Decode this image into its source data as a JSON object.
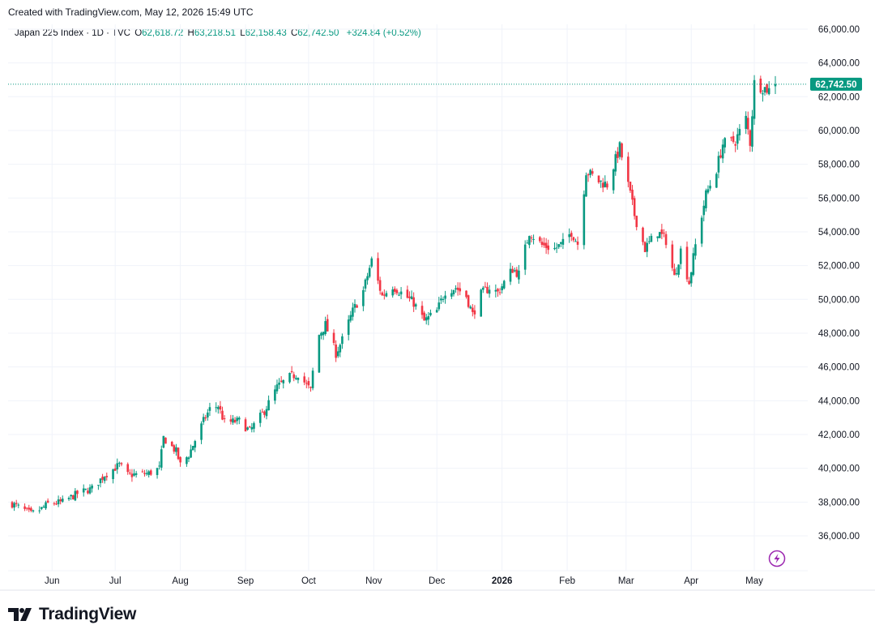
{
  "header": {
    "created_text": "Created with TradingView.com, May 12, 2026 15:49 UTC"
  },
  "legend": {
    "symbol": "Japan 225 Index · 1D · TVC",
    "open_label": "O",
    "open": "62,618.72",
    "high_label": "H",
    "high": "63,218.51",
    "low_label": "L",
    "low": "62,158.43",
    "close_label": "C",
    "close": "62,742.50",
    "change": "+324.84 (+0.52%)"
  },
  "price_tag": "62,742.50",
  "brand": {
    "name": "TradingView",
    "logo_icon": "tradingview-logo-icon"
  },
  "colors": {
    "up": "#089981",
    "down": "#f23645",
    "grid": "#f0f3fa",
    "text": "#131722",
    "accent": "#9c27b0"
  },
  "chart_data": {
    "type": "candlestick",
    "ylim": [
      34000,
      67000
    ],
    "y_ticks": [
      "36,000.00",
      "38,000.00",
      "40,000.00",
      "42,000.00",
      "44,000.00",
      "46,000.00",
      "48,000.00",
      "50,000.00",
      "52,000.00",
      "54,000.00",
      "56,000.00",
      "58,000.00",
      "60,000.00",
      "62,000.00",
      "64,000.00",
      "66,000.00"
    ],
    "x_ticks": [
      "Jun",
      "Jul",
      "Aug",
      "Sep",
      "Oct",
      "Nov",
      "Dec",
      "2026",
      "Feb",
      "Mar",
      "Apr",
      "May"
    ],
    "last_price": 62742.5,
    "close_anchors": [
      [
        "2025-05-13",
        37900
      ],
      [
        "2025-05-22",
        37300
      ],
      [
        "2025-05-27",
        37600
      ],
      [
        "2025-05-30",
        37900
      ],
      [
        "2025-06-06",
        38000
      ],
      [
        "2025-06-13",
        38500
      ],
      [
        "2025-06-20",
        38800
      ],
      [
        "2025-06-26",
        39600
      ],
      [
        "2025-07-03",
        40200
      ],
      [
        "2025-07-07",
        39600
      ],
      [
        "2025-07-17",
        39700
      ],
      [
        "2025-07-22",
        40000
      ],
      [
        "2025-07-24",
        41800
      ],
      [
        "2025-07-30",
        41000
      ],
      [
        "2025-08-01",
        40200
      ],
      [
        "2025-08-05",
        40800
      ],
      [
        "2025-08-12",
        42800
      ],
      [
        "2025-08-15",
        43500
      ],
      [
        "2025-08-19",
        43700
      ],
      [
        "2025-08-22",
        42700
      ],
      [
        "2025-08-29",
        42800
      ],
      [
        "2025-09-03",
        42200
      ],
      [
        "2025-09-10",
        43400
      ],
      [
        "2025-09-16",
        44800
      ],
      [
        "2025-09-22",
        45400
      ],
      [
        "2025-09-26",
        45600
      ],
      [
        "2025-10-02",
        44600
      ],
      [
        "2025-10-03",
        45700
      ],
      [
        "2025-10-06",
        47900
      ],
      [
        "2025-10-09",
        48500
      ],
      [
        "2025-10-14",
        46800
      ],
      [
        "2025-10-17",
        47600
      ],
      [
        "2025-10-22",
        49300
      ],
      [
        "2025-10-27",
        50500
      ],
      [
        "2025-10-31",
        52300
      ],
      [
        "2025-11-05",
        50200
      ],
      [
        "2025-11-10",
        50800
      ],
      [
        "2025-11-14",
        50400
      ],
      [
        "2025-11-20",
        49800
      ],
      [
        "2025-11-25",
        48700
      ],
      [
        "2025-12-01",
        49300
      ],
      [
        "2025-12-05",
        50500
      ],
      [
        "2025-12-10",
        50700
      ],
      [
        "2025-12-15",
        50200
      ],
      [
        "2025-12-18",
        49100
      ],
      [
        "2025-12-22",
        50300
      ],
      [
        "2025-12-26",
        50700
      ],
      [
        "2025-12-30",
        50400
      ],
      [
        "2026-01-06",
        51800
      ],
      [
        "2026-01-09",
        51500
      ],
      [
        "2026-01-14",
        54000
      ],
      [
        "2026-01-20",
        53200
      ],
      [
        "2026-01-26",
        53000
      ],
      [
        "2026-01-30",
        53300
      ],
      [
        "2026-02-03",
        54000
      ],
      [
        "2026-02-06",
        53300
      ],
      [
        "2026-02-10",
        57600
      ],
      [
        "2026-02-16",
        57000
      ],
      [
        "2026-02-20",
        56800
      ],
      [
        "2026-02-26",
        59000
      ],
      [
        "2026-03-03",
        56200
      ],
      [
        "2026-03-05",
        55000
      ],
      [
        "2026-03-10",
        53000
      ],
      [
        "2026-03-16",
        54000
      ],
      [
        "2026-03-20",
        53500
      ],
      [
        "2026-03-24",
        51300
      ],
      [
        "2026-03-27",
        52900
      ],
      [
        "2026-03-31",
        51000
      ],
      [
        "2026-04-03",
        53200
      ],
      [
        "2026-04-08",
        56200
      ],
      [
        "2026-04-13",
        57700
      ],
      [
        "2026-04-16",
        59200
      ],
      [
        "2026-04-22",
        59400
      ],
      [
        "2026-04-27",
        60700
      ],
      [
        "2026-04-29",
        59300
      ],
      [
        "2026-05-01",
        62800
      ],
      [
        "2026-05-06",
        62500
      ],
      [
        "2026-05-08",
        62400
      ],
      [
        "2026-05-11",
        62742.5
      ]
    ]
  }
}
